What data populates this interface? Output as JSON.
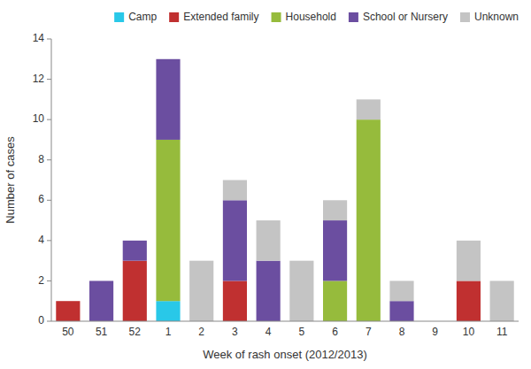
{
  "chart_data": {
    "type": "bar",
    "stacked": true,
    "xlabel": "Week of rash onset (2012/2013)",
    "ylabel": "Number of cases",
    "categories": [
      "50",
      "51",
      "52",
      "1",
      "2",
      "3",
      "4",
      "5",
      "6",
      "7",
      "8",
      "9",
      "10",
      "11"
    ],
    "series": [
      {
        "name": "Camp",
        "color": "#29C8E8",
        "values": [
          0,
          0,
          0,
          1,
          0,
          0,
          0,
          0,
          0,
          0,
          0,
          0,
          0,
          0
        ]
      },
      {
        "name": "Extended family",
        "color": "#C03030",
        "values": [
          1,
          0,
          3,
          0,
          0,
          2,
          0,
          0,
          0,
          0,
          0,
          0,
          2,
          0
        ]
      },
      {
        "name": "Household",
        "color": "#96BB3C",
        "values": [
          0,
          0,
          0,
          8,
          0,
          0,
          0,
          0,
          2,
          10,
          0,
          0,
          0,
          0
        ]
      },
      {
        "name": "School or Nursery",
        "color": "#6B4EA0",
        "values": [
          0,
          2,
          1,
          4,
          0,
          4,
          3,
          0,
          3,
          0,
          1,
          0,
          0,
          0
        ]
      },
      {
        "name": "Unknown",
        "color": "#C4C4C4",
        "values": [
          0,
          0,
          0,
          0,
          3,
          1,
          2,
          3,
          1,
          1,
          1,
          0,
          2,
          2
        ]
      }
    ],
    "ylim": [
      0,
      14
    ],
    "yticks": [
      0,
      2,
      4,
      6,
      8,
      10,
      12,
      14
    ],
    "grid": false,
    "legend": "upper right"
  }
}
